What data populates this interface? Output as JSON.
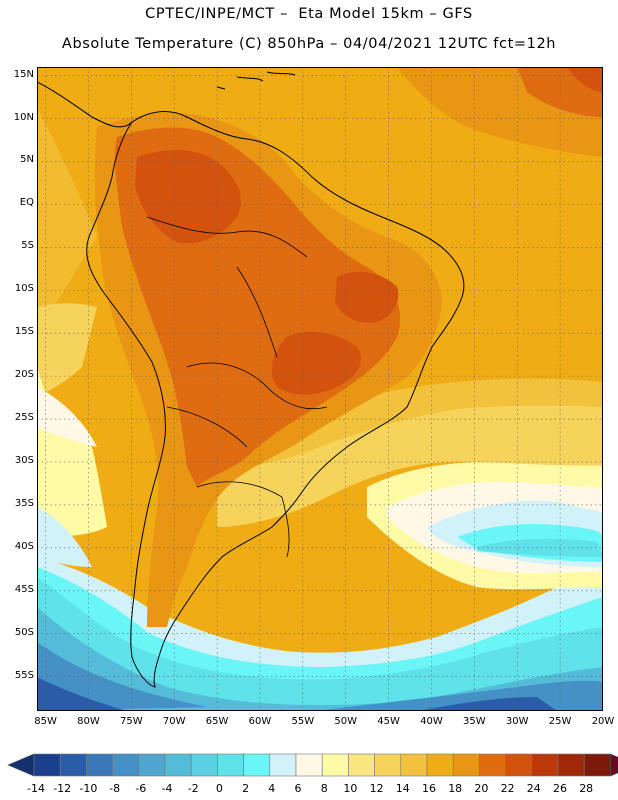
{
  "header": {
    "title_line1": "CPTEC/INPE/MCT –  Eta Model 15km – GFS",
    "title_line2": "Absolute Temperature (C) 850hPa – 04/04/2021 12UTC fct=12h"
  },
  "map": {
    "lat_labels": [
      "15N",
      "10N",
      "5N",
      "EQ",
      "5S",
      "10S",
      "15S",
      "20S",
      "25S",
      "30S",
      "35S",
      "40S",
      "45S",
      "50S",
      "55S"
    ],
    "lon_labels": [
      "85W",
      "80W",
      "75W",
      "70W",
      "65W",
      "60W",
      "55W",
      "50W",
      "45W",
      "40W",
      "35W",
      "30W",
      "25W",
      "20W"
    ],
    "lon_range": [
      -86,
      -20
    ],
    "lat_range": [
      -59,
      16
    ],
    "border_color": "#000000",
    "grid": "dotted"
  },
  "colorbar": {
    "labels": [
      "-14",
      "-12",
      "-10",
      "-8",
      "-6",
      "-4",
      "-2",
      "0",
      "2",
      "4",
      "6",
      "8",
      "10",
      "12",
      "14",
      "16",
      "18",
      "20",
      "22",
      "24",
      "26",
      "28"
    ],
    "colors": [
      "#1b3f8f",
      "#2a5ca8",
      "#3a78b8",
      "#4590c4",
      "#50a6cf",
      "#54bcd8",
      "#5ad0e2",
      "#5fe2ea",
      "#6af6f6",
      "#d2f2fa",
      "#fff8e6",
      "#fefaa6",
      "#fae680",
      "#f6d45c",
      "#f2c23c",
      "#f0ac14",
      "#e89614",
      "#e06c12",
      "#d2520e",
      "#bc380a",
      "#9e2808",
      "#7c1c08"
    ],
    "under_color": "#14306e",
    "over_color": "#6a0a22"
  }
}
